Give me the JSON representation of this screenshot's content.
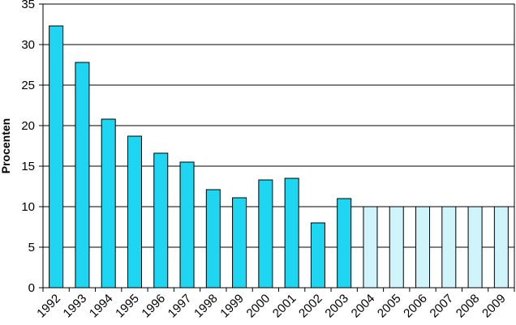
{
  "chart_data": {
    "type": "bar",
    "title": "",
    "xlabel": "",
    "ylabel": "Procenten",
    "ylim": [
      0,
      35
    ],
    "yticks": [
      0,
      5,
      10,
      15,
      20,
      25,
      30,
      35
    ],
    "grid": true,
    "categories": [
      "1992",
      "1993",
      "1994",
      "1995",
      "1996",
      "1997",
      "1998",
      "1999",
      "2000",
      "2001",
      "2002",
      "2003",
      "2004",
      "2005",
      "2006",
      "2007",
      "2008",
      "2009"
    ],
    "values": [
      32.3,
      27.8,
      20.8,
      18.7,
      16.6,
      15.5,
      12.1,
      11.1,
      13.3,
      13.5,
      8.0,
      11.0,
      10.0,
      10.0,
      10.0,
      10.0,
      10.0,
      10.0
    ],
    "bar_style": [
      "actual",
      "actual",
      "actual",
      "actual",
      "actual",
      "actual",
      "actual",
      "actual",
      "actual",
      "actual",
      "actual",
      "actual",
      "projected",
      "projected",
      "projected",
      "projected",
      "projected",
      "projected"
    ],
    "colors": {
      "actual": "#1fd6f2",
      "projected": "#cff4fb",
      "edge": "#000000",
      "grid": "#000000"
    }
  }
}
